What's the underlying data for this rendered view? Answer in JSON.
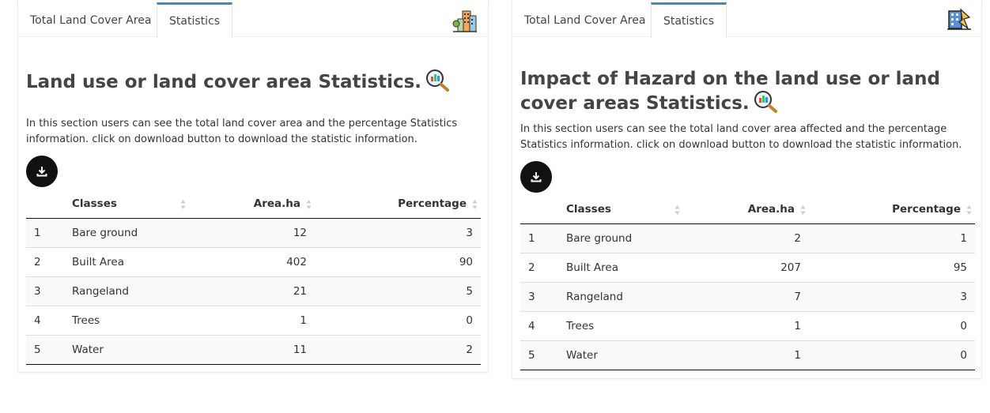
{
  "panels": [
    {
      "tabs": [
        "Total Land Cover Area",
        "Statistics"
      ],
      "header_icon": "city-buildings-icon",
      "title": "Land use or land cover area Statistics.",
      "description": "In this section users can see the total land cover area and the percentage Statistics information. click on download button to download the statistic information.",
      "columns": [
        "",
        "Classes",
        "Area.ha",
        "Percentage"
      ],
      "rows": [
        [
          "1",
          "Bare ground",
          "12",
          "3"
        ],
        [
          "2",
          "Built Area",
          "402",
          "90"
        ],
        [
          "3",
          "Rangeland",
          "21",
          "5"
        ],
        [
          "4",
          "Trees",
          "1",
          "0"
        ],
        [
          "5",
          "Water",
          "11",
          "2"
        ]
      ]
    },
    {
      "tabs": [
        "Total Land Cover Area",
        "Statistics"
      ],
      "header_icon": "hazard-building-icon",
      "title": "Impact of Hazard on the land use or land cover areas Statistics.",
      "description": "In this section users can see the total land cover area affected and the percentage Statistics information. click on download button to download the statistic information.",
      "columns": [
        "",
        "Classes",
        "Area.ha",
        "Percentage"
      ],
      "rows": [
        [
          "1",
          "Bare ground",
          "2",
          "1"
        ],
        [
          "2",
          "Built Area",
          "207",
          "95"
        ],
        [
          "3",
          "Rangeland",
          "7",
          "3"
        ],
        [
          "4",
          "Trees",
          "1",
          "0"
        ],
        [
          "5",
          "Water",
          "1",
          "0"
        ]
      ]
    }
  ],
  "colors": {
    "tab_accent": "#3c8dbc",
    "button": "#111111"
  },
  "icons": {
    "download": "download-icon",
    "magnifier": "magnifier-chart-icon",
    "sort": "sort-arrows-icon"
  }
}
